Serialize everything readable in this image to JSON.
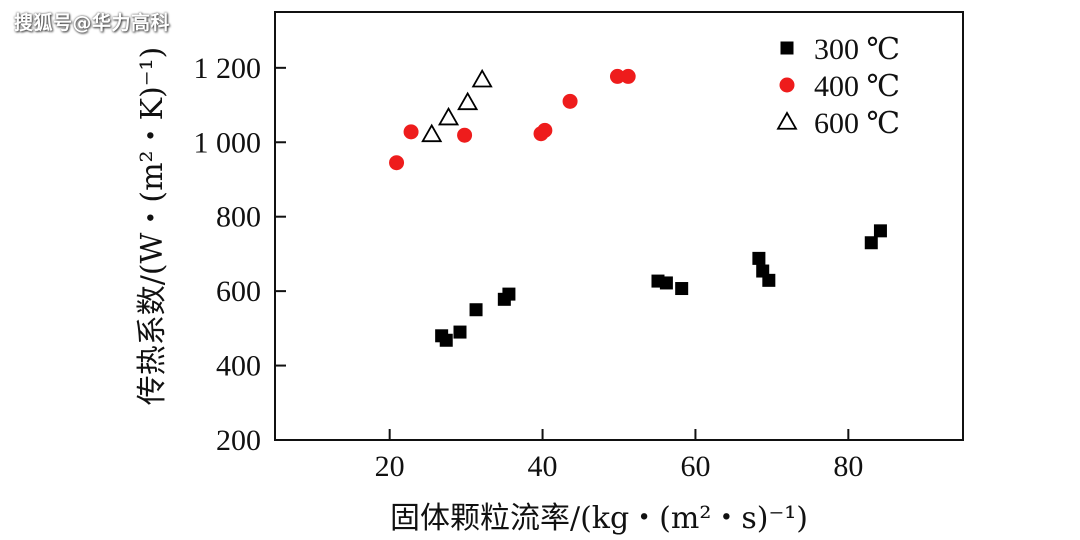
{
  "watermark": "搜狐号@华力高科",
  "chart_data": {
    "type": "scatter",
    "xlabel": "固体颗粒流率/(kg・(m²・s)⁻¹)",
    "ylabel": "传热系数/(W・(m²・K)⁻¹)",
    "xlim": [
      5,
      95
    ],
    "ylim": [
      200,
      1350
    ],
    "x_ticks": [
      20,
      40,
      60,
      80
    ],
    "x_tick_labels": [
      "20",
      "40",
      "60",
      "80"
    ],
    "y_ticks": [
      200,
      400,
      600,
      800,
      1000,
      1200
    ],
    "y_tick_labels": [
      "200",
      "400",
      "600",
      "800",
      "1 000",
      "1 200"
    ],
    "grid": false,
    "legend_position": "top-right",
    "series": [
      {
        "name": "300 ℃",
        "marker": "square",
        "color": "#000000",
        "points": [
          [
            26.8,
            480
          ],
          [
            27.4,
            468
          ],
          [
            29.2,
            490
          ],
          [
            31.3,
            550
          ],
          [
            35.0,
            578
          ],
          [
            35.6,
            592
          ],
          [
            55.1,
            627
          ],
          [
            56.2,
            622
          ],
          [
            58.2,
            607
          ],
          [
            68.3,
            688
          ],
          [
            68.8,
            654
          ],
          [
            69.6,
            629
          ],
          [
            83.0,
            730
          ],
          [
            84.2,
            762
          ]
        ]
      },
      {
        "name": "400 ℃",
        "marker": "circle",
        "color": "#ee1c1c",
        "points": [
          [
            20.9,
            945
          ],
          [
            22.8,
            1028
          ],
          [
            29.8,
            1019
          ],
          [
            39.8,
            1023
          ],
          [
            40.3,
            1032
          ],
          [
            43.6,
            1110
          ],
          [
            49.8,
            1177
          ],
          [
            51.2,
            1177
          ]
        ]
      },
      {
        "name": "600 ℃",
        "marker": "triangle-open",
        "color": "#000000",
        "points": [
          [
            25.5,
            1021
          ],
          [
            27.7,
            1066
          ],
          [
            30.2,
            1107
          ],
          [
            32.1,
            1168
          ]
        ]
      }
    ]
  }
}
